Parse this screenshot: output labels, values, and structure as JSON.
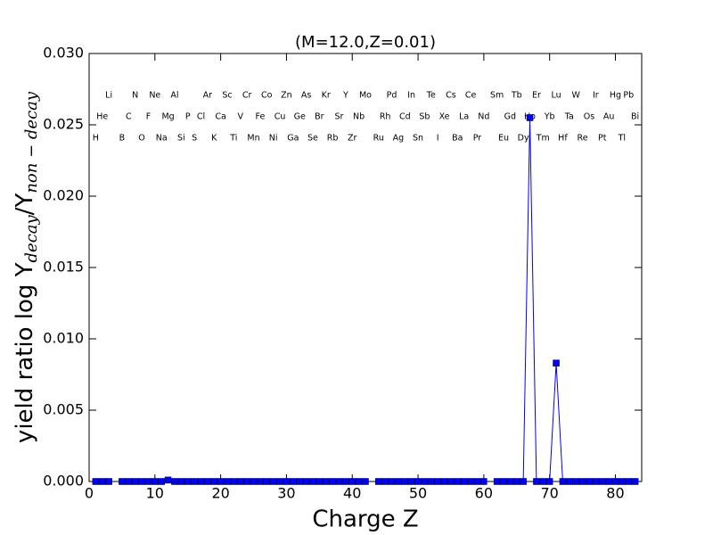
{
  "chart_data": {
    "type": "line",
    "title": "(M=12.0,Z=0.01)",
    "xlabel": "Charge Z",
    "ylabel": [
      "yield ratio log Y",
      "decay",
      "/Y",
      "non − decay"
    ],
    "x": [
      1,
      2,
      3,
      4,
      5,
      6,
      7,
      8,
      9,
      10,
      11,
      12,
      13,
      14,
      15,
      16,
      17,
      18,
      19,
      20,
      21,
      22,
      23,
      24,
      25,
      26,
      27,
      28,
      29,
      30,
      31,
      32,
      33,
      34,
      35,
      36,
      37,
      38,
      39,
      40,
      41,
      42,
      43,
      44,
      45,
      46,
      47,
      48,
      49,
      50,
      51,
      52,
      53,
      54,
      55,
      56,
      57,
      58,
      59,
      60,
      61,
      62,
      63,
      64,
      65,
      66,
      67,
      68,
      69,
      70,
      71,
      72,
      73,
      74,
      75,
      76,
      77,
      78,
      79,
      80,
      81,
      82,
      83
    ],
    "element_labels": [
      "H",
      "He",
      "Li",
      null,
      "B",
      "C",
      "N",
      "O",
      "F",
      "Ne",
      "Na",
      "Mg",
      "Al",
      "Si",
      "P",
      "S",
      "Cl",
      "Ar",
      "K",
      "Ca",
      "Sc",
      "Ti",
      "V",
      "Cr",
      "Mn",
      "Fe",
      "Co",
      "Ni",
      "Cu",
      "Zn",
      "Ga",
      "Ge",
      "As",
      "Se",
      "Br",
      "Kr",
      "Rb",
      "Sr",
      "Y",
      "Zr",
      "Nb",
      "Mo",
      null,
      "Ru",
      "Rh",
      "Pd",
      "Ag",
      "Cd",
      "In",
      "Sn",
      "Sb",
      "Te",
      "I",
      "Xe",
      "Cs",
      "Ba",
      "La",
      "Ce",
      "Pr",
      "Nd",
      null,
      "Sm",
      "Eu",
      "Gd",
      "Tb",
      "Dy",
      "Ho",
      "Er",
      "Tm",
      "Yb",
      "Lu",
      "Hf",
      "Ta",
      "W",
      "Re",
      "Os",
      "Ir",
      "Pt",
      "Au",
      "Hg",
      "Tl",
      "Pb",
      "Bi"
    ],
    "series": [
      {
        "color": "#0000ff",
        "values": [
          0,
          0,
          0,
          null,
          0,
          0,
          0,
          0,
          0,
          0,
          0,
          0.0001,
          0,
          0,
          0,
          0,
          0,
          0,
          0,
          0,
          0,
          0,
          0,
          0,
          0,
          0,
          0,
          0,
          0,
          0,
          0,
          0,
          0,
          0,
          0,
          0,
          0,
          0,
          0,
          0,
          0,
          0,
          null,
          0,
          0,
          0,
          0,
          0,
          0,
          0,
          0,
          0,
          0,
          0,
          0,
          0,
          0,
          0,
          0,
          0,
          null,
          0,
          0,
          0,
          0,
          0,
          0.0255,
          0,
          0,
          0,
          0.0083,
          0,
          0,
          0,
          0,
          0,
          0,
          0,
          0,
          0,
          0,
          0,
          0
        ]
      }
    ],
    "xlim": [
      0,
      84
    ],
    "ylim": [
      0,
      0.03
    ],
    "xticks": [
      0,
      10,
      20,
      30,
      40,
      50,
      60,
      70,
      80
    ],
    "yticks": [
      {
        "value": 0,
        "label": "0.000"
      },
      {
        "value": 0.005,
        "label": "0.005"
      },
      {
        "value": 0.01,
        "label": "0.010"
      },
      {
        "value": 0.015,
        "label": "0.015"
      },
      {
        "value": 0.02,
        "label": "0.020"
      },
      {
        "value": 0.025,
        "label": "0.025"
      },
      {
        "value": 0.03,
        "label": "0.030"
      }
    ]
  }
}
